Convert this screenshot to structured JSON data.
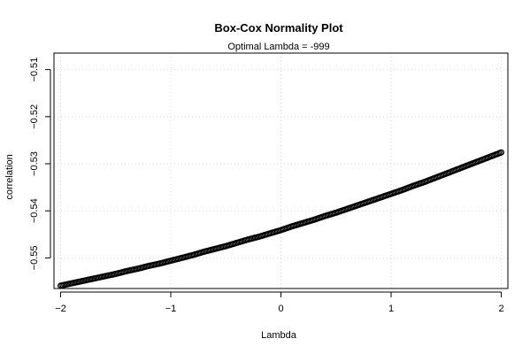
{
  "chart_data": {
    "type": "scatter",
    "title": "Box-Cox Normality Plot",
    "subtitle": "Optimal Lambda = -999",
    "xlabel": "Lambda",
    "ylabel": "correlation",
    "xlim": [
      -2.06,
      2.06
    ],
    "ylim": [
      -0.5565,
      -0.5065
    ],
    "xticks": [
      -2,
      -1,
      0,
      1,
      2
    ],
    "xtick_labels": [
      "−2",
      "−1",
      "0",
      "1",
      "2"
    ],
    "yticks": [
      -0.55,
      -0.54,
      -0.53,
      -0.52,
      -0.51
    ],
    "ytick_labels": [
      "−0.55",
      "−0.54",
      "−0.53",
      "−0.52",
      "−0.51"
    ],
    "grid": true,
    "series": [
      {
        "marker": "open-circle",
        "color": "#000000",
        "x": [
          -2.0,
          -1.9,
          -1.8,
          -1.7,
          -1.6,
          -1.5,
          -1.4,
          -1.3,
          -1.2,
          -1.1,
          -1.0,
          -0.9,
          -0.8,
          -0.7,
          -0.6,
          -0.5,
          -0.4,
          -0.3,
          -0.2,
          -0.1,
          0.0,
          0.1,
          0.2,
          0.3,
          0.4,
          0.5,
          0.6,
          0.7,
          0.8,
          0.9,
          1.0,
          1.1,
          1.2,
          1.3,
          1.4,
          1.5,
          1.6,
          1.7,
          1.8,
          1.9,
          2.0
        ],
        "y": [
          -0.5559,
          -0.5554,
          -0.5549,
          -0.5544,
          -0.5539,
          -0.5534,
          -0.5528,
          -0.5523,
          -0.5517,
          -0.5512,
          -0.5506,
          -0.55,
          -0.5494,
          -0.5487,
          -0.5481,
          -0.5475,
          -0.5468,
          -0.5461,
          -0.5455,
          -0.5448,
          -0.5441,
          -0.5433,
          -0.5426,
          -0.5419,
          -0.5411,
          -0.5404,
          -0.5396,
          -0.5388,
          -0.538,
          -0.5372,
          -0.5364,
          -0.5356,
          -0.5347,
          -0.5339,
          -0.533,
          -0.5321,
          -0.5312,
          -0.5303,
          -0.5294,
          -0.5285,
          -0.5276
        ]
      }
    ]
  },
  "colors": {
    "points": "#000000",
    "grid": "#d9d9d9"
  }
}
